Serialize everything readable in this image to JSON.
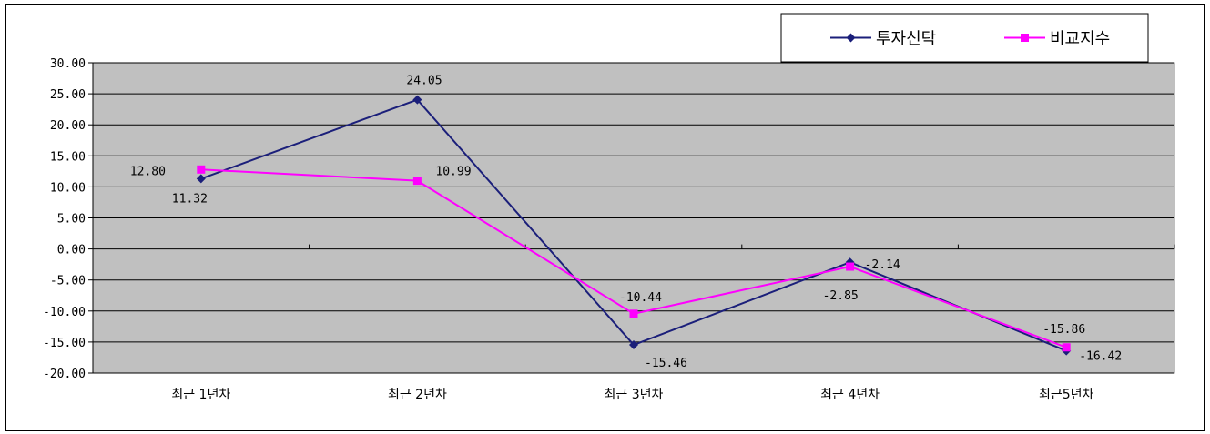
{
  "chart_data": {
    "type": "line",
    "categories": [
      "최근 1년차",
      "최근 2년차",
      "최근 3년차",
      "최근 4년차",
      "최근5년차"
    ],
    "series": [
      {
        "name": "투자신탁",
        "color": "#1b1f7a",
        "marker": "diamond",
        "values": [
          11.32,
          24.05,
          -15.46,
          -2.14,
          -16.42
        ],
        "labels": [
          "11.32",
          "24.05",
          "-15.46",
          "-2.14",
          "-16.42"
        ]
      },
      {
        "name": "비교지수",
        "color": "#ff00ff",
        "marker": "square",
        "values": [
          12.8,
          10.99,
          -10.44,
          -2.85,
          -15.86
        ],
        "labels": [
          "12.80",
          "10.99",
          "-10.44",
          "-2.85",
          "-15.86"
        ]
      }
    ],
    "yticks": [
      "30.00",
      "25.00",
      "20.00",
      "15.00",
      "10.00",
      "5.00",
      "0.00",
      "-5.00",
      "-10.00",
      "-15.00",
      "-20.00"
    ],
    "ylim": [
      -20,
      30
    ],
    "grid": true,
    "plot_background": "#c0c0c0",
    "legend_position": "top-right"
  }
}
